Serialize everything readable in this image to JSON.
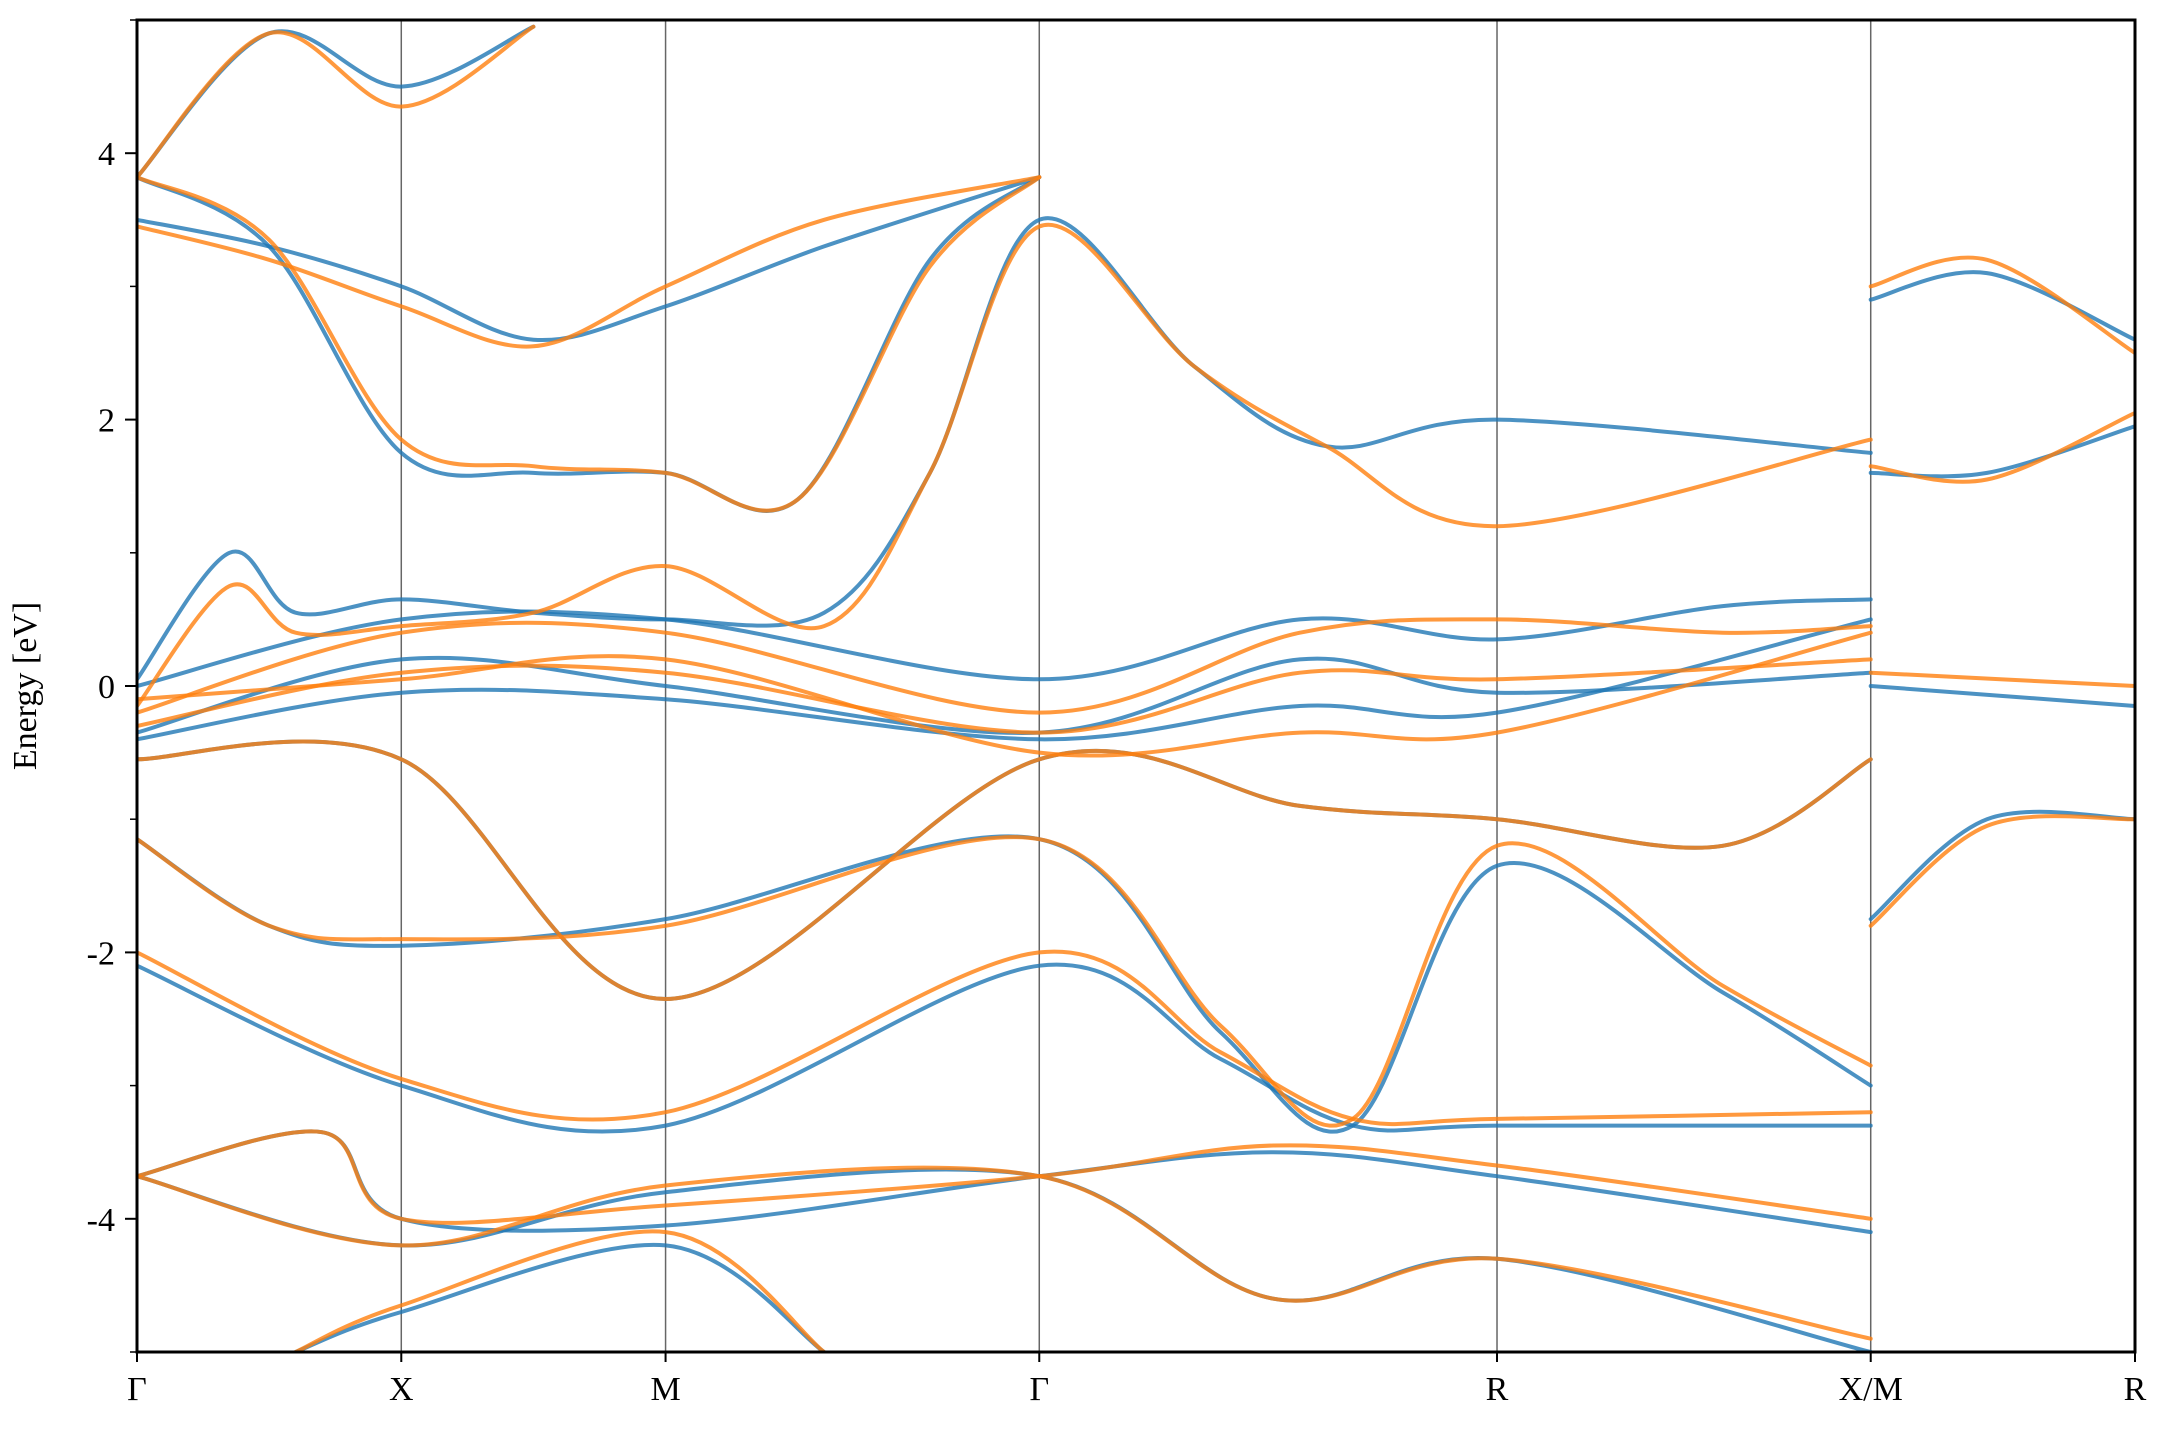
{
  "chart_data": {
    "type": "line",
    "title": "",
    "xlabel": "",
    "ylabel": "Energy [eV]",
    "ylim": [
      -5,
      5
    ],
    "y_ticks": [
      {
        "value": -4,
        "label": "-4"
      },
      {
        "value": -2,
        "label": "-2"
      },
      {
        "value": 0,
        "label": "0"
      },
      {
        "value": 2,
        "label": "2"
      },
      {
        "value": 4,
        "label": "4"
      }
    ],
    "high_symmetry_points": [
      {
        "label": "Γ",
        "x": 0
      },
      {
        "label": "X",
        "x": 1
      },
      {
        "label": "M",
        "x": 2
      },
      {
        "label": "Γ",
        "x": 3.414
      },
      {
        "label": "R",
        "x": 5.146
      },
      {
        "label": "X/M",
        "x": 6.56
      },
      {
        "label": "R",
        "x": 7.56
      }
    ],
    "grid": false,
    "series": [
      {
        "color": "#1f77b4",
        "bands": [
          [
            [
              0,
              3.82
            ],
            [
              0.5,
              3.3
            ],
            [
              1,
              1.75
            ],
            [
              1.5,
              1.6
            ],
            [
              2,
              1.6
            ],
            [
              2.5,
              1.4
            ],
            [
              3,
              3.2
            ],
            [
              3.414,
              3.82
            ]
          ],
          [
            [
              0,
              3.5
            ],
            [
              0.5,
              3.3
            ],
            [
              1,
              3.0
            ],
            [
              1.5,
              2.6
            ],
            [
              2,
              2.85
            ],
            [
              2.6,
              3.3
            ],
            [
              3.414,
              3.82
            ]
          ],
          [
            [
              0,
              3.82
            ],
            [
              0.5,
              4.9
            ],
            [
              1,
              4.5
            ],
            [
              1.5,
              4.95
            ]
          ],
          [
            [
              0,
              0.05
            ],
            [
              0.35,
              1.0
            ],
            [
              0.6,
              0.55
            ],
            [
              1,
              0.65
            ],
            [
              1.5,
              0.55
            ],
            [
              2,
              0.5
            ],
            [
              2.6,
              0.55
            ],
            [
              3,
              1.6
            ],
            [
              3.414,
              3.5
            ],
            [
              4,
              2.4
            ],
            [
              4.5,
              1.8
            ],
            [
              5.146,
              2.0
            ],
            [
              6.56,
              1.75
            ]
          ],
          [
            [
              0,
              0.0
            ],
            [
              1,
              0.5
            ],
            [
              2,
              0.5
            ],
            [
              3.414,
              0.05
            ],
            [
              4.4,
              0.5
            ],
            [
              5.146,
              0.35
            ],
            [
              6,
              0.6
            ],
            [
              6.56,
              0.65
            ]
          ],
          [
            [
              0,
              -0.35
            ],
            [
              1,
              0.2
            ],
            [
              2,
              0.0
            ],
            [
              3.414,
              -0.35
            ],
            [
              4.4,
              0.2
            ],
            [
              5.146,
              -0.05
            ],
            [
              6.56,
              0.1
            ]
          ],
          [
            [
              0,
              -0.4
            ],
            [
              1,
              -0.05
            ],
            [
              2,
              -0.1
            ],
            [
              3.414,
              -0.4
            ],
            [
              4.4,
              -0.15
            ],
            [
              5.146,
              -0.2
            ],
            [
              6.56,
              0.5
            ]
          ],
          [
            [
              0,
              -0.55
            ],
            [
              1,
              -0.55
            ],
            [
              2,
              -2.35
            ],
            [
              3.414,
              -0.55
            ],
            [
              4.4,
              -0.9
            ],
            [
              5.146,
              -1.0
            ],
            [
              6,
              -1.2
            ],
            [
              6.56,
              -0.55
            ]
          ],
          [
            [
              0,
              -1.15
            ],
            [
              0.5,
              -1.8
            ],
            [
              1,
              -1.95
            ],
            [
              2,
              -1.75
            ],
            [
              3.414,
              -1.15
            ],
            [
              4.1,
              -2.6
            ],
            [
              4.6,
              -3.3
            ],
            [
              5.146,
              -1.35
            ],
            [
              6,
              -2.3
            ],
            [
              6.56,
              -3.0
            ]
          ],
          [
            [
              0,
              -2.1
            ],
            [
              1,
              -3.0
            ],
            [
              2,
              -3.3
            ],
            [
              3.414,
              -2.1
            ],
            [
              4.1,
              -2.8
            ],
            [
              4.6,
              -3.3
            ],
            [
              5.146,
              -3.3
            ],
            [
              6.56,
              -3.3
            ]
          ],
          [
            [
              0,
              -3.68
            ],
            [
              0.7,
              -3.35
            ],
            [
              1,
              -4.0
            ],
            [
              2,
              -4.05
            ],
            [
              3.414,
              -3.68
            ],
            [
              4.3,
              -3.5
            ],
            [
              5.146,
              -3.68
            ],
            [
              6.56,
              -4.1
            ]
          ],
          [
            [
              0,
              -3.68
            ],
            [
              1,
              -4.2
            ],
            [
              2,
              -3.8
            ],
            [
              3.414,
              -3.68
            ],
            [
              4.3,
              -4.6
            ],
            [
              5.146,
              -4.3
            ],
            [
              6.56,
              -5.0
            ]
          ],
          [
            [
              0.6,
              -5.0
            ],
            [
              1,
              -4.7
            ],
            [
              2,
              -4.2
            ],
            [
              2.6,
              -5.0
            ]
          ],
          [
            [
              6.56,
              -1.75
            ],
            [
              7.0,
              -1.0
            ],
            [
              7.56,
              -1.0
            ]
          ],
          [
            [
              6.56,
              0.0
            ],
            [
              7.56,
              -0.15
            ]
          ],
          [
            [
              6.56,
              2.9
            ],
            [
              7.0,
              3.1
            ],
            [
              7.56,
              2.6
            ]
          ],
          [
            [
              6.56,
              1.6
            ],
            [
              7.0,
              1.6
            ],
            [
              7.56,
              1.95
            ]
          ]
        ]
      },
      {
        "color": "#ff7f0e",
        "bands": [
          [
            [
              0,
              3.82
            ],
            [
              0.5,
              3.35
            ],
            [
              1,
              1.85
            ],
            [
              1.5,
              1.65
            ],
            [
              2,
              1.6
            ],
            [
              2.5,
              1.4
            ],
            [
              3,
              3.15
            ],
            [
              3.414,
              3.82
            ]
          ],
          [
            [
              0,
              3.45
            ],
            [
              0.5,
              3.2
            ],
            [
              1,
              2.85
            ],
            [
              1.5,
              2.55
            ],
            [
              2,
              3.0
            ],
            [
              2.6,
              3.5
            ],
            [
              3.414,
              3.82
            ]
          ],
          [
            [
              0,
              3.82
            ],
            [
              0.5,
              4.9
            ],
            [
              1,
              4.35
            ],
            [
              1.5,
              4.95
            ]
          ],
          [
            [
              0,
              -0.15
            ],
            [
              0.35,
              0.75
            ],
            [
              0.6,
              0.4
            ],
            [
              1,
              0.45
            ],
            [
              1.5,
              0.55
            ],
            [
              2,
              0.9
            ],
            [
              2.6,
              0.45
            ],
            [
              3,
              1.6
            ],
            [
              3.414,
              3.45
            ],
            [
              4,
              2.4
            ],
            [
              4.5,
              1.8
            ],
            [
              5.146,
              1.2
            ],
            [
              6.56,
              1.85
            ]
          ],
          [
            [
              0,
              -0.2
            ],
            [
              1,
              0.4
            ],
            [
              2,
              0.4
            ],
            [
              3.414,
              -0.2
            ],
            [
              4.4,
              0.4
            ],
            [
              5.146,
              0.5
            ],
            [
              6,
              0.4
            ],
            [
              6.56,
              0.45
            ]
          ],
          [
            [
              0,
              -0.3
            ],
            [
              1,
              0.1
            ],
            [
              2,
              0.1
            ],
            [
              3.414,
              -0.35
            ],
            [
              4.4,
              0.1
            ],
            [
              5.146,
              0.05
            ],
            [
              6.56,
              0.2
            ]
          ],
          [
            [
              0,
              -0.1
            ],
            [
              1,
              0.05
            ],
            [
              2,
              0.2
            ],
            [
              3.414,
              -0.5
            ],
            [
              4.4,
              -0.35
            ],
            [
              5.146,
              -0.35
            ],
            [
              6.56,
              0.4
            ]
          ],
          [
            [
              0,
              -0.55
            ],
            [
              1,
              -0.55
            ],
            [
              2,
              -2.35
            ],
            [
              3.414,
              -0.55
            ],
            [
              4.4,
              -0.9
            ],
            [
              5.146,
              -1.0
            ],
            [
              6,
              -1.2
            ],
            [
              6.56,
              -0.55
            ]
          ],
          [
            [
              0,
              -1.15
            ],
            [
              0.5,
              -1.8
            ],
            [
              1,
              -1.9
            ],
            [
              2,
              -1.8
            ],
            [
              3.414,
              -1.15
            ],
            [
              4.1,
              -2.55
            ],
            [
              4.6,
              -3.25
            ],
            [
              5.146,
              -1.2
            ],
            [
              6,
              -2.25
            ],
            [
              6.56,
              -2.85
            ]
          ],
          [
            [
              0,
              -2.0
            ],
            [
              1,
              -2.95
            ],
            [
              2,
              -3.2
            ],
            [
              3.414,
              -2.0
            ],
            [
              4.1,
              -2.75
            ],
            [
              4.6,
              -3.25
            ],
            [
              5.146,
              -3.25
            ],
            [
              6.56,
              -3.2
            ]
          ],
          [
            [
              0,
              -3.68
            ],
            [
              0.7,
              -3.35
            ],
            [
              1,
              -4.0
            ],
            [
              2,
              -3.9
            ],
            [
              3.414,
              -3.68
            ],
            [
              4.3,
              -3.45
            ],
            [
              5.146,
              -3.6
            ],
            [
              6.56,
              -4.0
            ]
          ],
          [
            [
              0,
              -3.68
            ],
            [
              1,
              -4.2
            ],
            [
              2,
              -3.75
            ],
            [
              3.414,
              -3.68
            ],
            [
              4.3,
              -4.6
            ],
            [
              5.146,
              -4.3
            ],
            [
              6.56,
              -4.9
            ]
          ],
          [
            [
              0.6,
              -5.0
            ],
            [
              1,
              -4.65
            ],
            [
              2,
              -4.1
            ],
            [
              2.6,
              -5.0
            ]
          ],
          [
            [
              6.56,
              -1.8
            ],
            [
              7.0,
              -1.05
            ],
            [
              7.56,
              -1.0
            ]
          ],
          [
            [
              6.56,
              0.1
            ],
            [
              7.56,
              0.0
            ]
          ],
          [
            [
              6.56,
              3.0
            ],
            [
              7.0,
              3.2
            ],
            [
              7.56,
              2.5
            ]
          ],
          [
            [
              6.56,
              1.65
            ],
            [
              7.0,
              1.55
            ],
            [
              7.56,
              2.05
            ]
          ]
        ]
      }
    ]
  }
}
